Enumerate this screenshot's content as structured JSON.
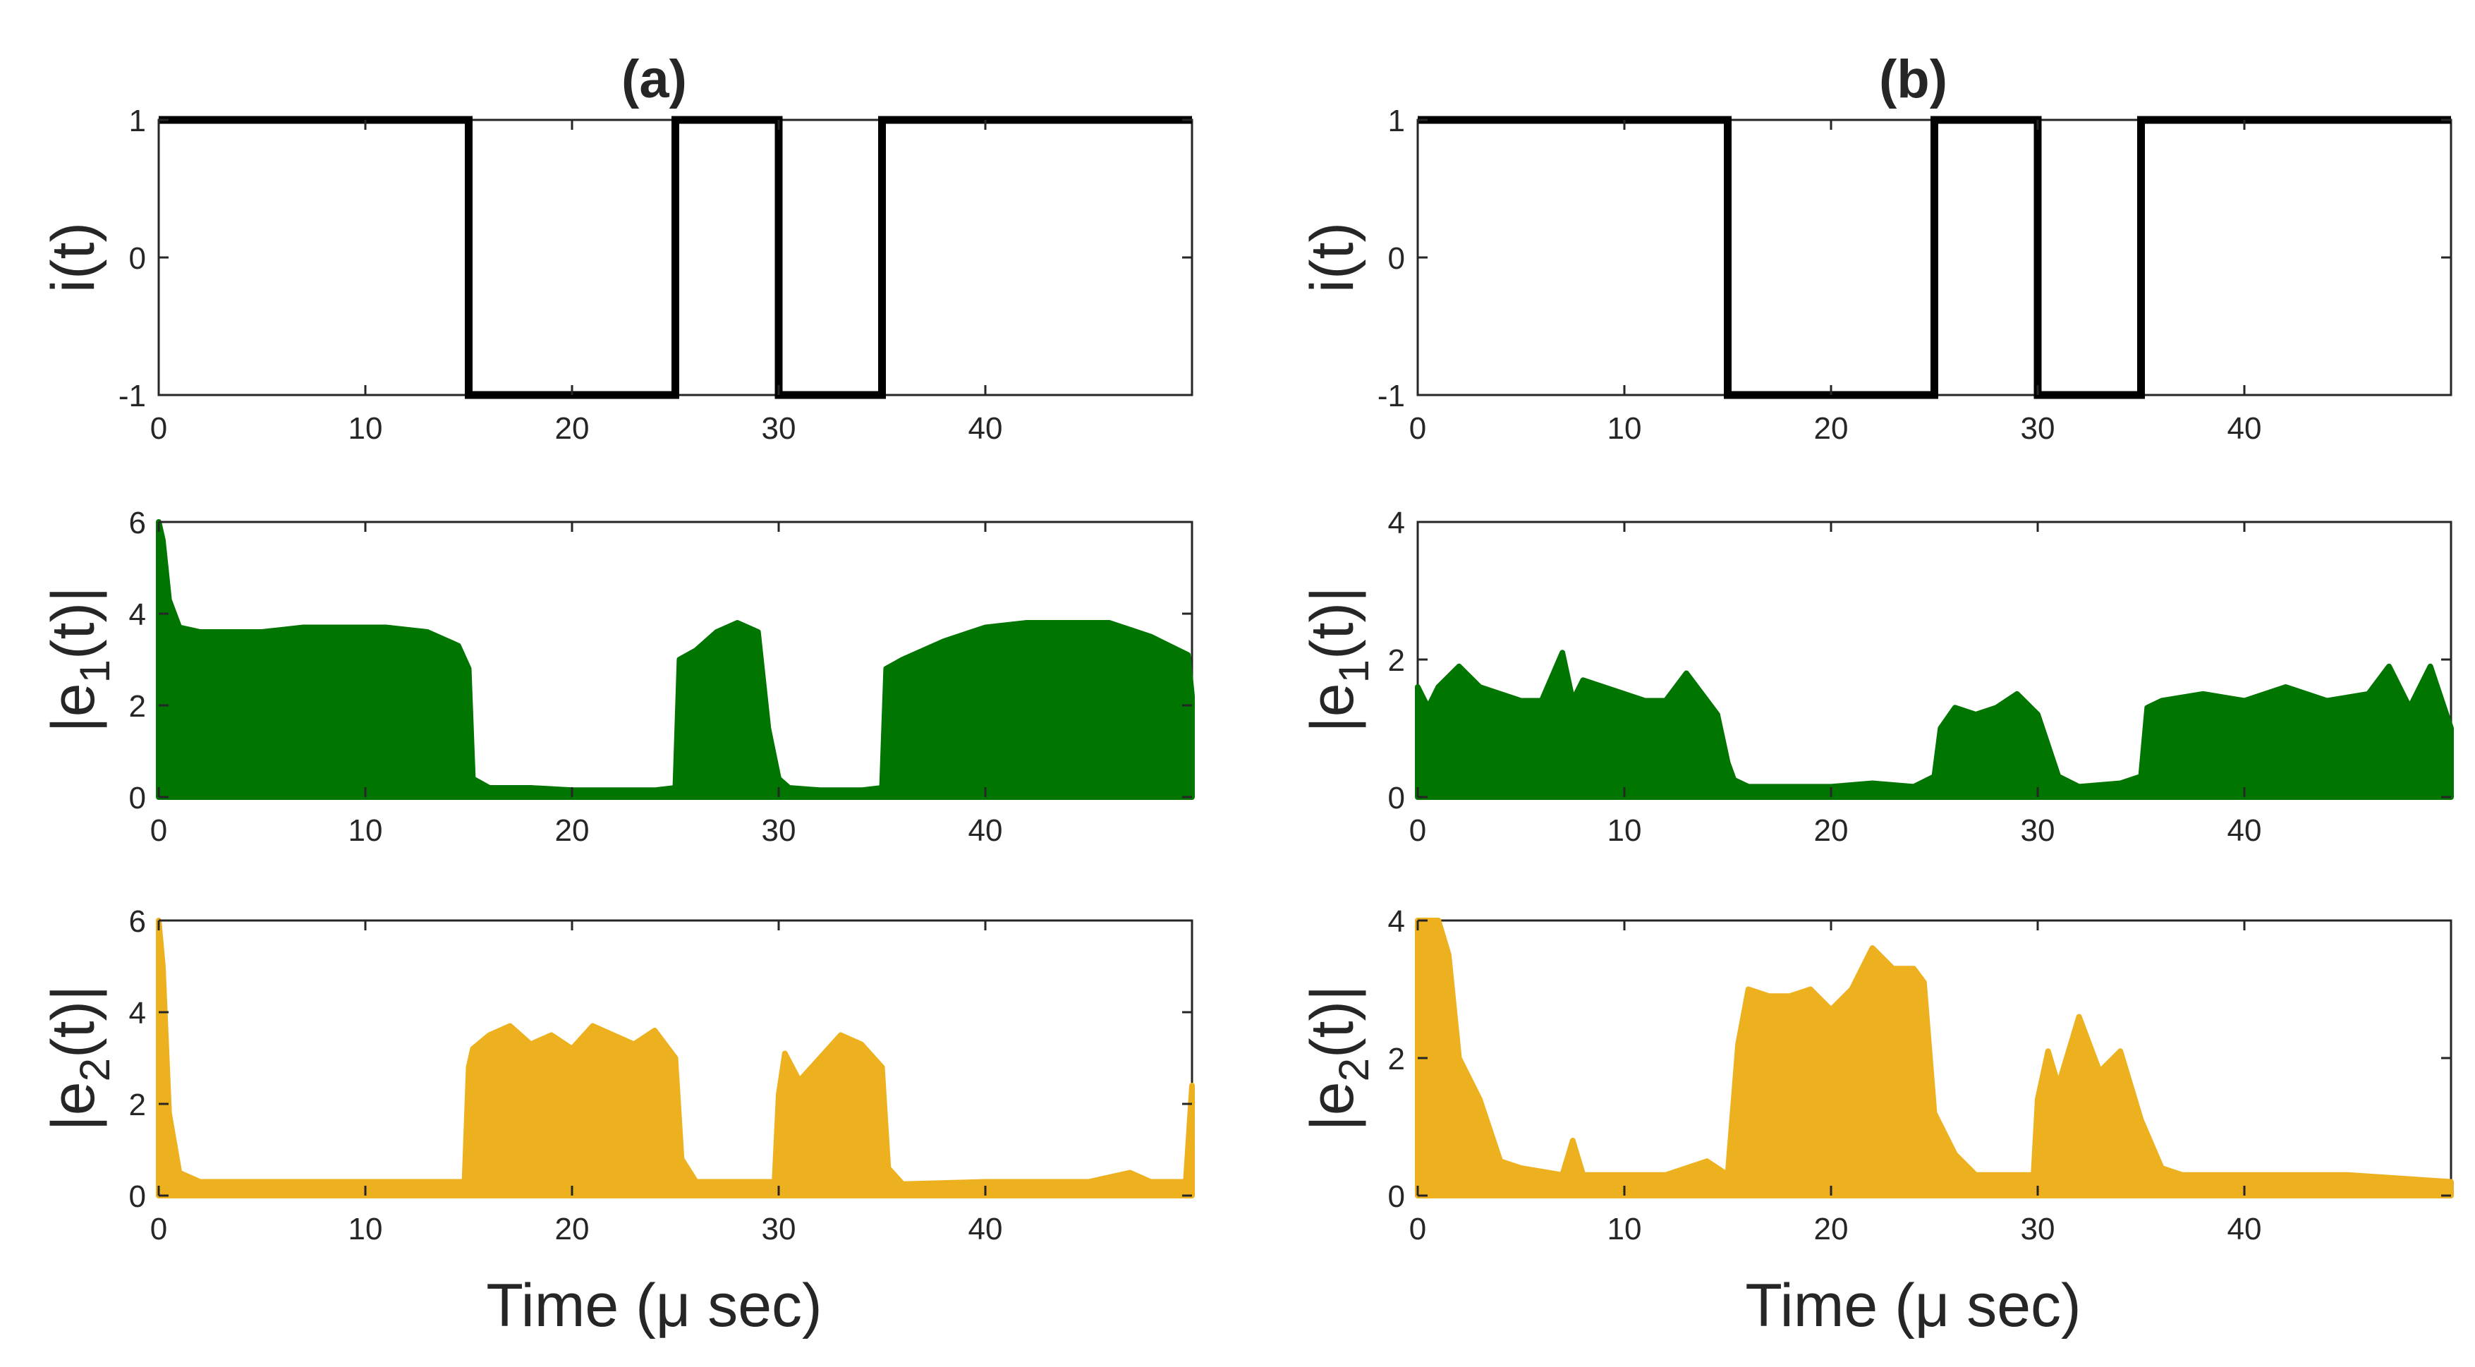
{
  "chart_data": [
    {
      "panel": "(a)",
      "type": "line",
      "title": "(a)",
      "xlabel": "",
      "ylabel": "i(t)",
      "xlim": [
        0,
        50
      ],
      "ylim": [
        -1,
        1
      ],
      "xticks": [
        0,
        10,
        20,
        30,
        40
      ],
      "yticks": [
        -1,
        0,
        1
      ],
      "color": "#000000",
      "series": [
        {
          "x": [
            0,
            15,
            15,
            25,
            25,
            30,
            30,
            35,
            35,
            50
          ],
          "y": [
            1,
            1,
            -1,
            -1,
            1,
            1,
            -1,
            -1,
            1,
            1
          ]
        }
      ]
    },
    {
      "panel": "(b)",
      "type": "line",
      "title": "(b)",
      "xlabel": "",
      "ylabel": "i(t)",
      "xlim": [
        0,
        50
      ],
      "ylim": [
        -1,
        1
      ],
      "xticks": [
        0,
        10,
        20,
        30,
        40
      ],
      "yticks": [
        -1,
        0,
        1
      ],
      "color": "#000000",
      "series": [
        {
          "x": [
            0,
            15,
            15,
            25,
            25,
            30,
            30,
            35,
            35,
            50
          ],
          "y": [
            1,
            1,
            -1,
            -1,
            1,
            1,
            -1,
            -1,
            1,
            1
          ]
        }
      ]
    },
    {
      "panel": "(a)",
      "type": "area",
      "title": "",
      "xlabel": "",
      "ylabel_main": "|e",
      "ylabel_sub": "1",
      "ylabel_tail": "(t)|",
      "xlim": [
        0,
        50
      ],
      "ylim": [
        0,
        6
      ],
      "xticks": [
        0,
        10,
        20,
        30,
        40
      ],
      "yticks": [
        0,
        2,
        4,
        6
      ],
      "color": "#007500",
      "series": [
        {
          "x": [
            0,
            0.2,
            0.5,
            1,
            2,
            3,
            5,
            7,
            9,
            11,
            13,
            14.5,
            15,
            15.2,
            16,
            18,
            20,
            22,
            24,
            25,
            25.2,
            26,
            27,
            28,
            29,
            29.5,
            30,
            30.5,
            32,
            34,
            35,
            35.2,
            36,
            38,
            40,
            42,
            44,
            46,
            48,
            49.8,
            50
          ],
          "y": [
            6.0,
            5.6,
            4.3,
            3.7,
            3.6,
            3.6,
            3.6,
            3.7,
            3.7,
            3.7,
            3.6,
            3.3,
            2.8,
            0.4,
            0.2,
            0.2,
            0.15,
            0.15,
            0.15,
            0.2,
            3.0,
            3.2,
            3.6,
            3.8,
            3.6,
            1.5,
            0.4,
            0.2,
            0.15,
            0.15,
            0.2,
            2.8,
            3.0,
            3.4,
            3.7,
            3.8,
            3.8,
            3.8,
            3.5,
            3.1,
            2.2
          ]
        }
      ]
    },
    {
      "panel": "(b)",
      "type": "area",
      "title": "",
      "xlabel": "",
      "ylabel_main": "|e",
      "ylabel_sub": "1",
      "ylabel_tail": "(t)|",
      "xlim": [
        0,
        50
      ],
      "ylim": [
        0,
        4
      ],
      "xticks": [
        0,
        10,
        20,
        30,
        40
      ],
      "yticks": [
        0,
        2,
        4
      ],
      "color": "#007500",
      "series": [
        {
          "x": [
            0,
            0.5,
            1,
            2,
            3,
            4,
            5,
            6,
            7,
            7.5,
            8,
            9,
            10,
            11,
            12,
            13,
            14,
            14.5,
            15,
            15.3,
            16,
            18,
            20,
            22,
            24,
            25,
            25.3,
            26,
            27,
            28,
            29,
            30,
            31,
            32,
            34,
            35,
            35.3,
            36,
            38,
            40,
            42,
            44,
            46,
            47,
            48,
            49,
            50
          ],
          "y": [
            1.6,
            1.3,
            1.6,
            1.9,
            1.6,
            1.5,
            1.4,
            1.4,
            2.1,
            1.4,
            1.7,
            1.6,
            1.5,
            1.4,
            1.4,
            1.8,
            1.4,
            1.2,
            0.5,
            0.25,
            0.15,
            0.15,
            0.15,
            0.2,
            0.15,
            0.3,
            1.0,
            1.3,
            1.2,
            1.3,
            1.5,
            1.2,
            0.3,
            0.15,
            0.2,
            0.3,
            1.3,
            1.4,
            1.5,
            1.4,
            1.6,
            1.4,
            1.5,
            1.9,
            1.3,
            1.9,
            1.0
          ]
        }
      ]
    },
    {
      "panel": "(a)",
      "type": "area",
      "title": "",
      "xlabel": "Time (μ sec)",
      "ylabel_main": "|e",
      "ylabel_sub": "2",
      "ylabel_tail": "(t)|",
      "xlim": [
        0,
        50
      ],
      "ylim": [
        0,
        6
      ],
      "xticks": [
        0,
        10,
        20,
        30,
        40
      ],
      "yticks": [
        0,
        2,
        4,
        6
      ],
      "color": "#EDB120",
      "series": [
        {
          "x": [
            0,
            0.2,
            0.5,
            1,
            2,
            5,
            10,
            14.8,
            15,
            15.2,
            16,
            17,
            18,
            19,
            20,
            21,
            22,
            23,
            24,
            25,
            25.3,
            26,
            28,
            29.8,
            30,
            30.3,
            31,
            32,
            33,
            34,
            35,
            35.3,
            36,
            40,
            45,
            47,
            48,
            49.7,
            50
          ],
          "y": [
            6.0,
            5.0,
            1.8,
            0.5,
            0.3,
            0.3,
            0.3,
            0.3,
            2.8,
            3.2,
            3.5,
            3.7,
            3.3,
            3.5,
            3.2,
            3.7,
            3.5,
            3.3,
            3.6,
            3.0,
            0.8,
            0.3,
            0.3,
            0.3,
            2.2,
            3.1,
            2.5,
            3.0,
            3.5,
            3.3,
            2.8,
            0.6,
            0.25,
            0.3,
            0.3,
            0.5,
            0.3,
            0.3,
            2.4
          ]
        }
      ]
    },
    {
      "panel": "(b)",
      "type": "area",
      "title": "",
      "xlabel": "Time (μ sec)",
      "ylabel_main": "|e",
      "ylabel_sub": "2",
      "ylabel_tail": "(t)|",
      "xlim": [
        0,
        50
      ],
      "ylim": [
        0,
        4
      ],
      "xticks": [
        0,
        10,
        20,
        30,
        40
      ],
      "yticks": [
        0,
        2,
        4
      ],
      "color": "#EDB120",
      "series": [
        {
          "x": [
            0,
            0.5,
            1,
            1.5,
            2,
            3,
            4,
            5,
            7,
            7.5,
            8,
            10,
            12,
            14,
            15,
            15.5,
            16,
            17,
            18,
            19,
            20,
            21,
            22,
            23,
            24,
            24.5,
            25,
            26,
            27,
            28,
            29.8,
            30,
            30.5,
            31,
            32,
            33,
            34,
            35,
            36,
            37,
            40,
            45,
            50
          ],
          "y": [
            4.0,
            4.0,
            4.0,
            3.5,
            2.0,
            1.4,
            0.5,
            0.4,
            0.3,
            0.8,
            0.3,
            0.3,
            0.3,
            0.5,
            0.3,
            2.2,
            3.0,
            2.9,
            2.9,
            3.0,
            2.7,
            3.0,
            3.6,
            3.3,
            3.3,
            3.1,
            1.2,
            0.6,
            0.3,
            0.3,
            0.3,
            1.4,
            2.1,
            1.6,
            2.6,
            1.8,
            2.1,
            1.1,
            0.4,
            0.3,
            0.3,
            0.3,
            0.2
          ]
        }
      ]
    }
  ]
}
